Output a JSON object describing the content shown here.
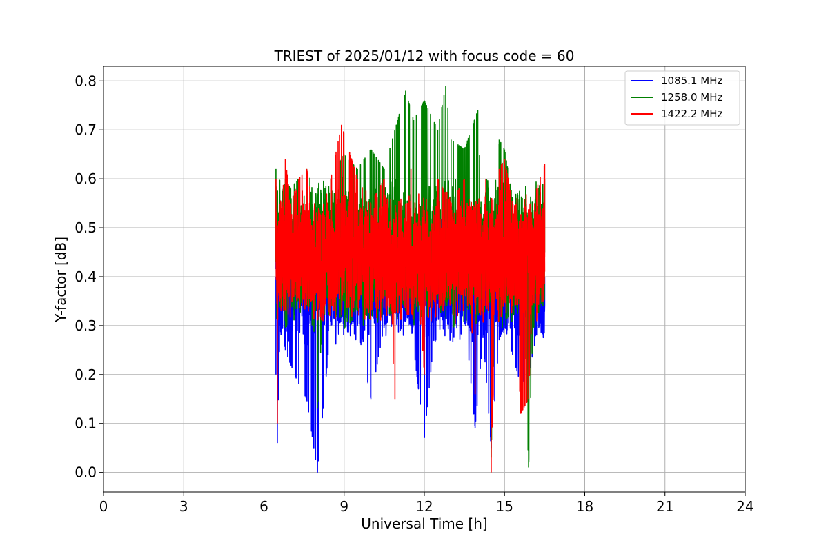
{
  "chart_data": {
    "type": "line",
    "title": "TRIEST of 2025/01/12 with focus code = 60",
    "xlabel": "Universal Time [h]",
    "ylabel": "Y-factor [dB]",
    "xlim": [
      0,
      24
    ],
    "ylim": [
      -0.04,
      0.83
    ],
    "x_ticks": [
      0,
      3,
      6,
      9,
      12,
      15,
      18,
      21,
      24
    ],
    "y_ticks": [
      0.0,
      0.1,
      0.2,
      0.3,
      0.4,
      0.5,
      0.6,
      0.7,
      0.8
    ],
    "x_tick_labels": [
      "0",
      "3",
      "6",
      "9",
      "12",
      "15",
      "18",
      "21",
      "24"
    ],
    "y_tick_labels": [
      "0.0",
      "0.1",
      "0.2",
      "0.3",
      "0.4",
      "0.5",
      "0.6",
      "0.7",
      "0.8"
    ],
    "grid": true,
    "legend_position": "top-right",
    "x_range_of_data": [
      6.45,
      16.5
    ],
    "series": [
      {
        "name": "1085.1 MHz",
        "color": "#0000ff",
        "values_x": [
          6.45,
          6.5,
          6.6,
          6.8,
          7.0,
          7.3,
          7.6,
          8.0,
          8.5,
          9.0,
          9.5,
          10.0,
          10.5,
          11.0,
          11.5,
          12.0,
          12.5,
          13.0,
          13.5,
          13.9,
          14.2,
          14.5,
          14.8,
          15.0,
          15.3,
          15.6,
          15.9,
          16.2,
          16.5
        ],
        "values_y": [
          0.2,
          0.06,
          0.3,
          0.25,
          0.22,
          0.18,
          0.15,
          0.0,
          0.3,
          0.32,
          0.3,
          0.15,
          0.3,
          0.33,
          0.3,
          0.07,
          0.35,
          0.36,
          0.33,
          0.09,
          0.28,
          0.05,
          0.27,
          0.3,
          0.24,
          0.18,
          0.2,
          0.28,
          0.34
        ]
      },
      {
        "name": "1258.0 MHz",
        "color": "#008000",
        "values_x": [
          6.45,
          6.5,
          6.6,
          6.8,
          7.0,
          7.3,
          7.6,
          8.0,
          8.5,
          9.0,
          9.5,
          10.0,
          10.5,
          11.0,
          11.3,
          11.6,
          12.0,
          12.5,
          12.8,
          13.0,
          13.5,
          14.0,
          14.5,
          14.8,
          15.0,
          15.3,
          15.6,
          15.9,
          16.2,
          16.5
        ],
        "values_y": [
          0.62,
          0.5,
          0.55,
          0.6,
          0.58,
          0.6,
          0.62,
          0.13,
          0.6,
          0.65,
          0.62,
          0.66,
          0.62,
          0.72,
          0.78,
          0.72,
          0.76,
          0.7,
          0.79,
          0.68,
          0.66,
          0.74,
          0.03,
          0.68,
          0.66,
          0.56,
          0.52,
          0.01,
          0.55,
          0.6
        ]
      },
      {
        "name": "1422.2 MHz",
        "color": "#ff0000",
        "values_x": [
          6.45,
          6.5,
          6.6,
          6.8,
          7.0,
          7.3,
          7.6,
          8.0,
          8.5,
          8.9,
          9.5,
          10.0,
          10.5,
          10.9,
          11.5,
          12.0,
          12.5,
          13.0,
          13.5,
          13.9,
          14.3,
          14.5,
          14.8,
          15.0,
          15.3,
          15.6,
          15.9,
          16.2,
          16.5
        ],
        "values_y": [
          0.6,
          0.1,
          0.5,
          0.64,
          0.55,
          0.6,
          0.62,
          0.5,
          0.6,
          0.71,
          0.6,
          0.55,
          0.6,
          0.15,
          0.62,
          0.2,
          0.6,
          0.55,
          0.6,
          0.16,
          0.6,
          0.0,
          0.62,
          0.64,
          0.55,
          0.12,
          0.15,
          0.58,
          0.63
        ]
      }
    ]
  }
}
